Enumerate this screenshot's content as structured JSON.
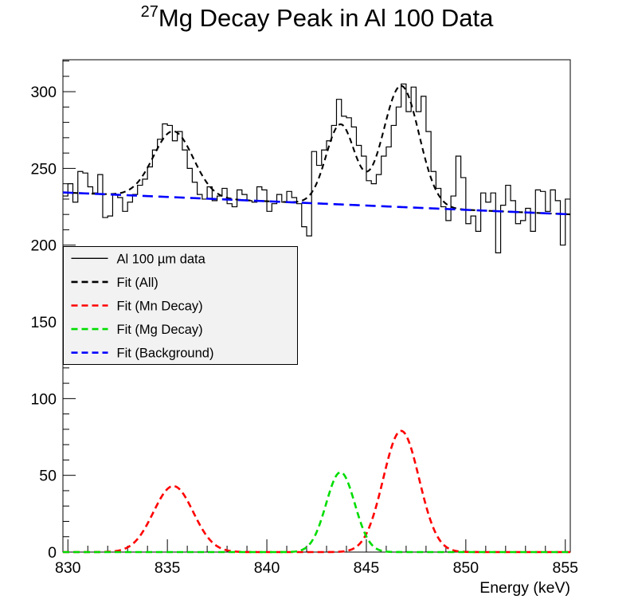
{
  "title": {
    "superscript": "27",
    "text": "Mg Decay Peak in Al 100 Data"
  },
  "axes": {
    "x": {
      "label": "Energy (keV)",
      "range": [
        829.75,
        855.25
      ],
      "major_ticks": [
        830,
        835,
        840,
        845,
        850,
        855
      ],
      "minor_step": 1
    },
    "y": {
      "label": "",
      "range": [
        0,
        320.8
      ],
      "major_ticks": [
        0,
        50,
        100,
        150,
        200,
        250,
        300
      ],
      "minor_step": 10
    }
  },
  "legend": {
    "entries": [
      {
        "label": "Al 100 µm data",
        "color": "#000000",
        "style": "solid"
      },
      {
        "label": "Fit (All)",
        "color": "#000000",
        "style": "dashed"
      },
      {
        "label": "Fit (Mn Decay)",
        "color": "#ff0000",
        "style": "dashed"
      },
      {
        "label": "Fit (Mg Decay)",
        "color": "#00dd00",
        "style": "dashed"
      },
      {
        "label": "Fit (Background)",
        "color": "#0000ff",
        "style": "dashed"
      }
    ]
  },
  "chart_data": {
    "type": "histogram_with_fits",
    "title": "^27Mg Decay Peak in Al 100 Data",
    "xlabel": "Energy (keV)",
    "ylabel": "",
    "xlim": [
      829.75,
      855.25
    ],
    "ylim": [
      0,
      320.8
    ],
    "grid": false,
    "legend_position": "upper-left-inside",
    "histogram": {
      "name": "Al 100 µm data",
      "color": "#000000",
      "bin_edges_start": 829.75,
      "bin_width": 0.25,
      "counts": [
        232,
        240,
        228,
        248,
        247,
        238,
        234,
        246,
        218,
        219,
        233,
        231,
        222,
        228,
        233,
        239,
        243,
        251,
        262,
        269,
        279,
        278,
        268,
        274,
        262,
        250,
        241,
        233,
        230,
        238,
        229,
        232,
        237,
        227,
        225,
        236,
        233,
        229,
        228,
        238,
        236,
        222,
        227,
        233,
        228,
        235,
        231,
        227,
        212,
        206,
        261,
        252,
        262,
        268,
        278,
        295,
        284,
        283,
        277,
        265,
        258,
        242,
        240,
        246,
        258,
        264,
        278,
        290,
        305,
        287,
        303,
        287,
        297,
        274,
        248,
        237,
        225,
        216,
        232,
        258,
        244,
        214,
        219,
        209,
        234,
        228,
        234,
        195,
        226,
        239,
        229,
        214,
        216,
        224,
        209,
        236,
        235,
        222,
        236,
        229,
        200,
        230
      ]
    },
    "fit_background": {
      "name": "Fit (Background)",
      "color": "#0000ff",
      "value_at_830": 234.2,
      "slope_per_keV": -0.56
    },
    "fit_mn_decay": {
      "name": "Fit (Mn Decay)",
      "color": "#ff0000",
      "peaks": [
        {
          "mean": 835.3,
          "amplitude": 43,
          "sigma": 1.0
        },
        {
          "mean": 846.75,
          "amplitude": 79,
          "sigma": 0.9
        }
      ]
    },
    "fit_mg_decay": {
      "name": "Fit (Mg Decay)",
      "color": "#00dd00",
      "peaks": [
        {
          "mean": 843.7,
          "amplitude": 52,
          "sigma": 0.72
        }
      ]
    },
    "fit_all": {
      "name": "Fit (All)",
      "color": "#000000",
      "composition": "background + mn_peaks + mg_peaks"
    }
  }
}
